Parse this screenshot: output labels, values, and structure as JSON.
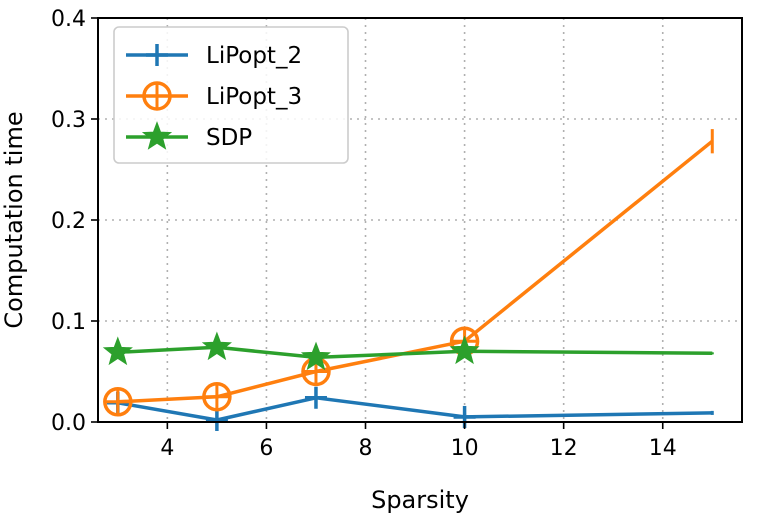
{
  "chart_data": {
    "type": "line",
    "xlabel": "Sparsity",
    "ylabel": "Computation time",
    "xlim": [
      2.6,
      15.6
    ],
    "ylim": [
      0.0,
      0.4
    ],
    "xticks": [
      4,
      6,
      8,
      10,
      12,
      14
    ],
    "yticks": [
      0.0,
      0.1,
      0.2,
      0.3,
      0.4
    ],
    "grid": true,
    "legend_position": "top-left",
    "series": [
      {
        "name": "LiPopt_2",
        "color": "#1f77b4",
        "marker": "plus",
        "x": [
          3,
          5,
          7,
          10,
          15
        ],
        "y": [
          0.019,
          0.002,
          0.024,
          0.005,
          0.009
        ],
        "error": [
          0.004,
          0.002,
          0.007,
          0.004,
          0.002
        ]
      },
      {
        "name": "LiPopt_3",
        "color": "#ff7f0e",
        "marker": "circle-plus",
        "x": [
          3,
          5,
          7,
          10,
          15
        ],
        "y": [
          0.02,
          0.025,
          0.05,
          0.08,
          0.278
        ],
        "error": [
          0.003,
          0.002,
          0.004,
          0.004,
          0.012
        ]
      },
      {
        "name": "SDP",
        "color": "#2ca02c",
        "marker": "star",
        "x": [
          3,
          5,
          7,
          10,
          15
        ],
        "y": [
          0.069,
          0.074,
          0.064,
          0.07,
          0.068
        ],
        "error": [
          0.002,
          0.004,
          0.002,
          0.002,
          0.001
        ]
      }
    ]
  }
}
